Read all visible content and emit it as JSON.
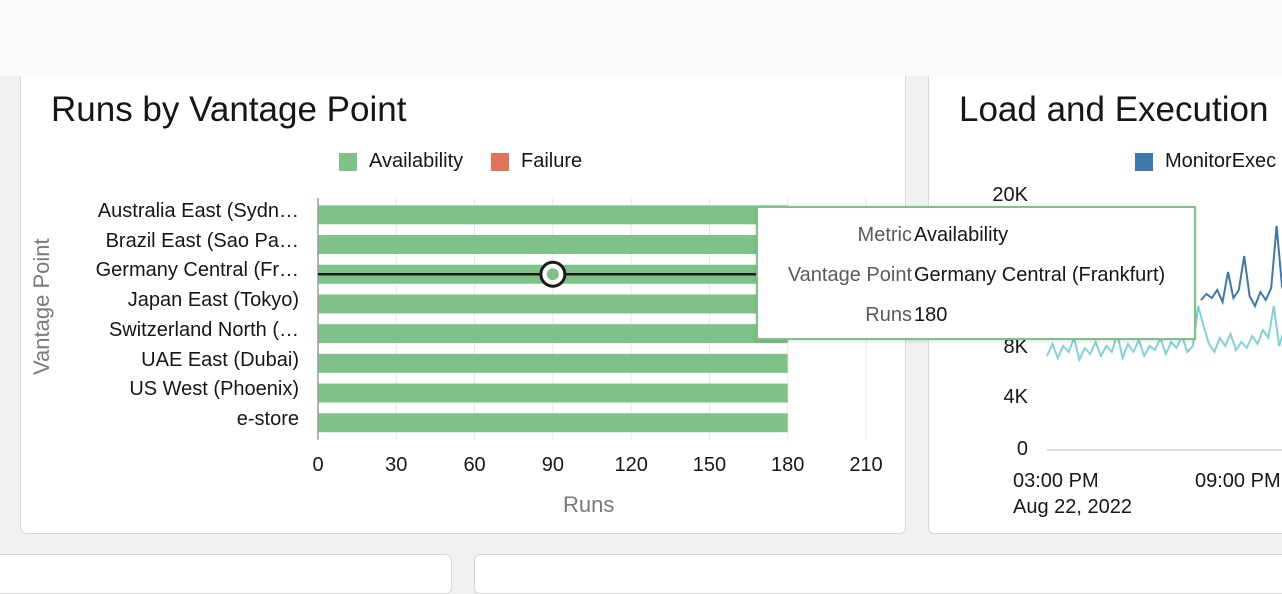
{
  "left_panel": {
    "title": "Runs by Vantage Point"
  },
  "right_panel": {
    "title": "Load and Execution",
    "legend_label": "MonitorExec",
    "legend_color": "#3d78ad"
  },
  "tooltip": {
    "rows": [
      {
        "key": "Metric",
        "value": "Availability"
      },
      {
        "key": "Vantage Point",
        "value": "Germany Central (Frankfurt)"
      },
      {
        "key": "Runs",
        "value": "180"
      }
    ]
  },
  "chart_data": [
    {
      "type": "bar",
      "orientation": "horizontal",
      "title": "Runs by Vantage Point",
      "xlabel": "Runs",
      "ylabel": "Vantage Point",
      "categories": [
        "Australia East (Sydn…",
        "Brazil East (Sao Pa…",
        "Germany Central (Fr…",
        "Japan East (Tokyo)",
        "Switzerland North (…",
        "UAE East (Dubai)",
        "US West (Phoenix)",
        "e-store"
      ],
      "series": [
        {
          "name": "Availability",
          "color": "#7ec28a",
          "values": [
            180,
            180,
            180,
            180,
            180,
            180,
            180,
            180
          ]
        },
        {
          "name": "Failure",
          "color": "#e2735a",
          "values": [
            0,
            0,
            0,
            0,
            0,
            0,
            0,
            0
          ]
        }
      ],
      "xlim": [
        0,
        210
      ],
      "xticks": [
        "0",
        "30",
        "60",
        "90",
        "120",
        "150",
        "180",
        "210"
      ],
      "grid": true,
      "legend_position": "top",
      "hover_category": "Germany Central (Fr…",
      "hover_marker_value": 90
    },
    {
      "type": "line",
      "title": "Load and Execution",
      "series": [
        {
          "name": "MonitorExec",
          "color": "#3d78ad"
        },
        {
          "color": "#7fd3d8"
        }
      ],
      "yticks": [
        "0",
        "4K",
        "8K",
        "20K"
      ],
      "ylim": [
        0,
        20000
      ],
      "xticks": [
        "03:00 PM",
        "09:00 PM"
      ],
      "xsublabel": "Aug 22, 2022",
      "legend_position": "top"
    }
  ]
}
